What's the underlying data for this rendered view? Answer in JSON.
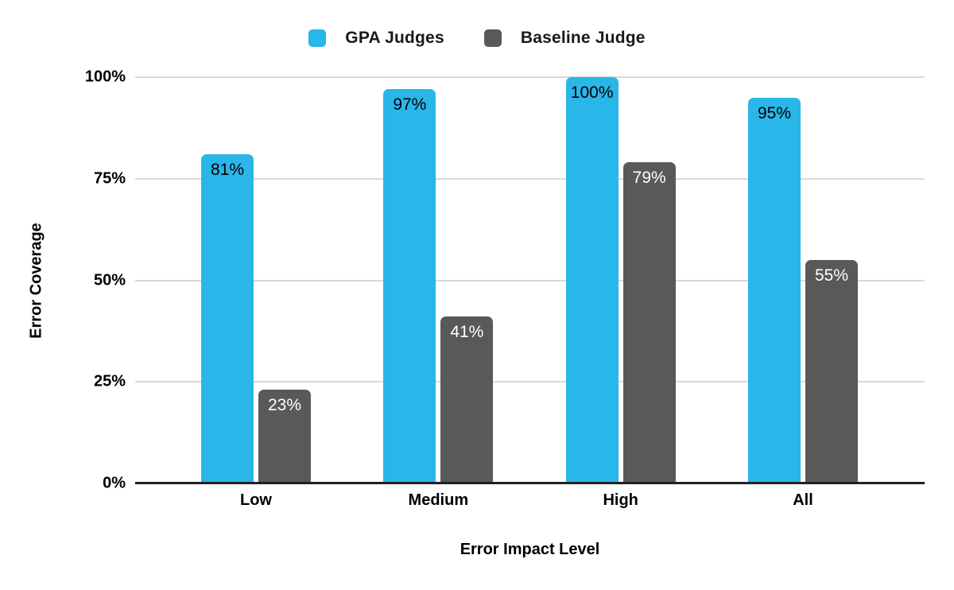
{
  "chart_data": {
    "type": "bar",
    "title": "",
    "categories": [
      "Low",
      "Medium",
      "High",
      "All"
    ],
    "series": [
      {
        "name": "GPA Judges",
        "color": "#29b6e8",
        "label_color": "#000000",
        "values": [
          81,
          97,
          100,
          95
        ]
      },
      {
        "name": "Baseline Judge",
        "color": "#595959",
        "label_color": "#ffffff",
        "values": [
          23,
          41,
          79,
          55
        ]
      }
    ],
    "value_suffix": "%",
    "xlabel": "Error Impact Level",
    "ylabel": "Error Coverage",
    "ylim": [
      0,
      100
    ],
    "yticks": [
      "0%",
      "25%",
      "50%",
      "75%",
      "100%"
    ],
    "grid": true,
    "legend_position": "top",
    "colors": {
      "background": "#ffffff",
      "gridline": "#d9d9d9",
      "axis_line": "#212121",
      "text": "#000000"
    }
  }
}
